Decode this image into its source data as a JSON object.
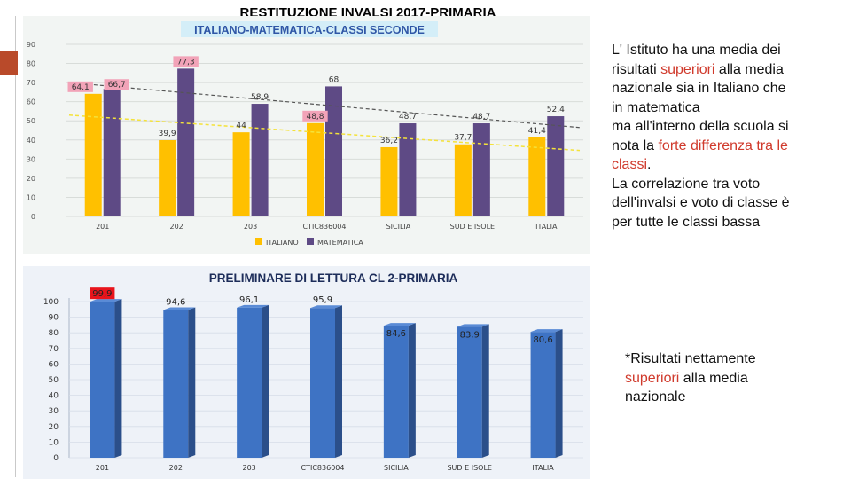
{
  "slide": {
    "title": "RESTITUZIONE INVALSI 2017-PRIMARIA"
  },
  "side_text_1": {
    "l1": "L' Istituto ha una media dei",
    "l2a": "risultati ",
    "l2b": "superiori",
    "l2c": " alla media",
    "l3": "nazionale sia in Italiano che",
    "l4": "in matematica",
    "l5": "ma all'interno della scuola si",
    "l6a": "nota la ",
    "l6b": "forte differenza tra le",
    "l7a": "classi",
    "l7b": ".",
    "l8": "La correlazione tra voto",
    "l9": "dell'invalsi e voto di classe è",
    "l10": "per tutte le classi bassa"
  },
  "side_text_2": {
    "l1": "*Risultati nettamente",
    "l2a": "superiori",
    "l2b": " alla media",
    "l3": "nazionale"
  },
  "colors": {
    "italiano": "#ffc000",
    "matematica": "#5e4a85",
    "trend_italiano": "#f4e23a",
    "trend_matematica": "#555555",
    "label_pink": "#f2a3b8",
    "bar_blue": "#3e73c4",
    "bar_blue_dark": "#2b4f8a",
    "red_mark": "#e8141c",
    "title_blue": "#2f56a6"
  },
  "chart_data": [
    {
      "type": "bar",
      "title": "ITALIANO-MATEMATICA-CLASSI SECONDE",
      "categories": [
        "201",
        "202",
        "203",
        "CTIC836004",
        "SICILIA",
        "SUD E ISOLE",
        "ITALIA"
      ],
      "series": [
        {
          "name": "ITALIANO",
          "values": [
            64.1,
            39.9,
            44,
            48.8,
            36.2,
            37.7,
            41.4
          ],
          "labels": [
            "64,1",
            "39,9",
            "44",
            "48,8",
            "36,2",
            "37,7",
            "41,4"
          ]
        },
        {
          "name": "MATEMATICA",
          "values": [
            66.7,
            77.3,
            58.9,
            68,
            48.7,
            48.7,
            52.4
          ],
          "labels": [
            "66,7",
            "77,3",
            "58,9",
            "68",
            "48,7",
            "48,7",
            "52,4"
          ]
        }
      ],
      "y_ticks": [
        "0",
        "10",
        "20",
        "30",
        "40",
        "50",
        "60",
        "70",
        "80",
        "90"
      ],
      "ylim": [
        0,
        90
      ],
      "trendlines": [
        {
          "series": "MATEMATICA",
          "from": 70,
          "to": 46.5
        },
        {
          "series": "ITALIANO",
          "from": 53,
          "to": 34.5
        }
      ],
      "highlighted_labels": [
        "64,1",
        "66,7",
        "77,3",
        "48,8"
      ],
      "legend": "bottom-center"
    },
    {
      "type": "bar",
      "title": "PRELIMINARE  DI LETTURA CL 2-PRIMARIA",
      "categories": [
        "201",
        "202",
        "203",
        "CTIC836004",
        "SICILIA",
        "SUD E ISOLE",
        "ITALIA"
      ],
      "values": [
        99.9,
        94.6,
        96.1,
        95.9,
        84.6,
        83.9,
        80.6
      ],
      "labels": [
        "99,9",
        "94,6",
        "96,1",
        "95,9",
        "84,6",
        "83,9",
        "80,6"
      ],
      "y_ticks": [
        "0",
        "10",
        "20",
        "30",
        "40",
        "50",
        "60",
        "70",
        "80",
        "90",
        "100"
      ],
      "ylim": [
        0,
        100
      ],
      "highlighted_labels": [
        "99,9"
      ]
    }
  ]
}
